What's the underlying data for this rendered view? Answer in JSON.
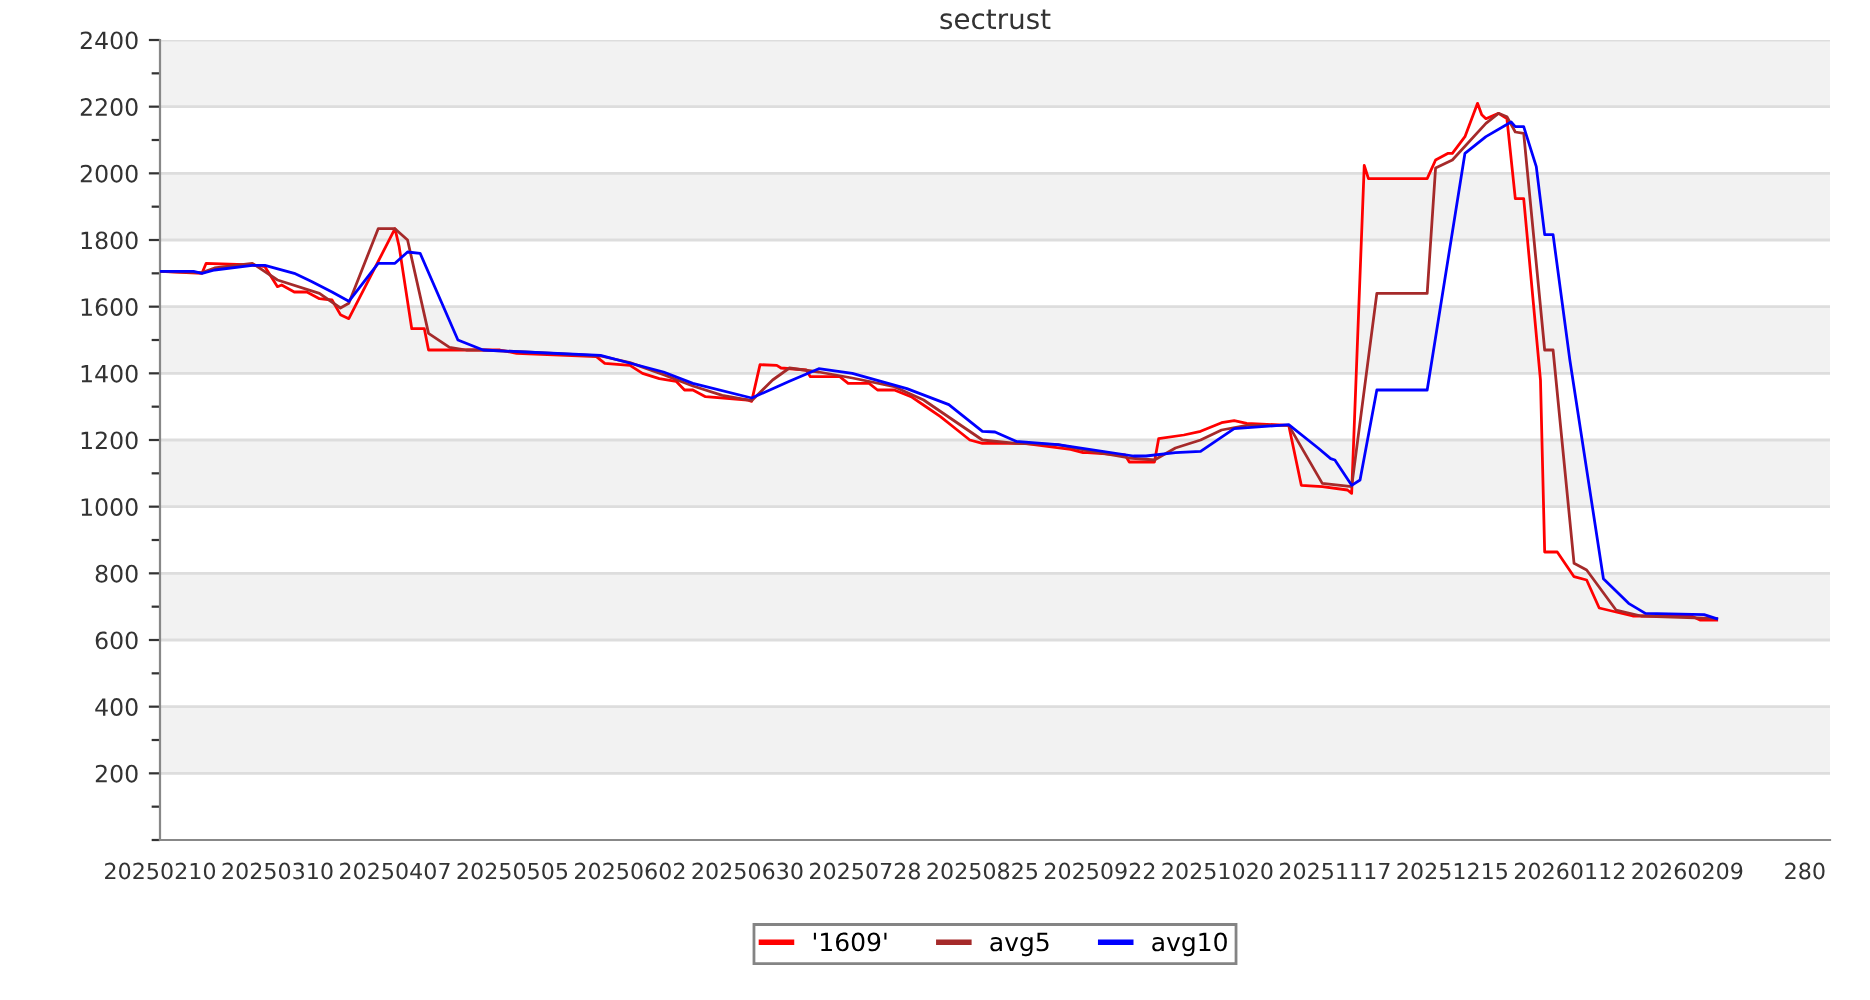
{
  "chart_data": {
    "type": "line",
    "title": "sectrust",
    "xlim": [
      "2025-02-10",
      "2026-03-15"
    ],
    "ylim": [
      0,
      2400
    ],
    "xticks": [
      {
        "value": "2025-02-10",
        "label": "20250210"
      },
      {
        "value": "2025-03-10",
        "label": "20250310"
      },
      {
        "value": "2025-04-07",
        "label": "20250407"
      },
      {
        "value": "2025-05-05",
        "label": "20250505"
      },
      {
        "value": "2025-06-02",
        "label": "20250602"
      },
      {
        "value": "2025-06-30",
        "label": "20250630"
      },
      {
        "value": "2025-07-28",
        "label": "20250728"
      },
      {
        "value": "2025-08-25",
        "label": "20250825"
      },
      {
        "value": "2025-09-22",
        "label": "20250922"
      },
      {
        "value": "2025-10-20",
        "label": "20251020"
      },
      {
        "value": "2025-11-17",
        "label": "20251117"
      },
      {
        "value": "2025-12-15",
        "label": "20251215"
      },
      {
        "value": "2026-01-12",
        "label": "20260112"
      },
      {
        "value": "2026-02-09",
        "label": "20260209"
      },
      {
        "value": "2026-03-09",
        "label": "280"
      }
    ],
    "yticks": [
      {
        "value": 0,
        "label": null
      },
      {
        "value": 100,
        "label": null
      },
      200,
      {
        "value": 300,
        "label": null
      },
      400,
      {
        "value": 500,
        "label": null
      },
      600,
      {
        "value": 700,
        "label": null
      },
      800,
      {
        "value": 900,
        "label": null
      },
      1000,
      {
        "value": 1100,
        "label": null
      },
      1200,
      {
        "value": 1300,
        "label": null
      },
      1400,
      {
        "value": 1500,
        "label": null
      },
      1600,
      {
        "value": 1700,
        "label": null
      },
      1800,
      {
        "value": 1900,
        "label": null
      },
      2000,
      {
        "value": 2100,
        "label": null
      },
      2200,
      {
        "value": 2300,
        "label": null
      },
      2400
    ],
    "grid": "y",
    "legend": "bottom",
    "marker": "none",
    "line_style": "solid",
    "series": [
      {
        "name": "'1609'",
        "color": "#ff0000",
        "x": [
          "2025-02-10",
          "2025-02-20",
          "2025-02-21",
          "2025-03-04",
          "2025-03-07",
          "2025-03-10",
          "2025-03-11",
          "2025-03-14",
          "2025-03-17",
          "2025-03-20",
          "2025-03-23",
          "2025-03-25",
          "2025-03-27",
          "2025-04-07",
          "2025-04-08",
          "2025-04-11",
          "2025-04-14",
          "2025-04-15",
          "2025-05-02",
          "2025-05-06",
          "2025-05-25",
          "2025-05-27",
          "2025-06-02",
          "2025-06-05",
          "2025-06-09",
          "2025-06-13",
          "2025-06-15",
          "2025-06-17",
          "2025-06-20",
          "2025-06-30",
          "2025-07-01",
          "2025-07-03",
          "2025-07-07",
          "2025-07-08",
          "2025-07-14",
          "2025-07-15",
          "2025-07-22",
          "2025-07-24",
          "2025-07-29",
          "2025-07-31",
          "2025-08-04",
          "2025-08-08",
          "2025-08-12",
          "2025-08-15",
          "2025-08-19",
          "2025-08-22",
          "2025-08-25",
          "2025-09-04",
          "2025-09-15",
          "2025-09-18",
          "2025-09-19",
          "2025-09-28",
          "2025-09-29",
          "2025-10-05",
          "2025-10-06",
          "2025-10-12",
          "2025-10-16",
          "2025-10-21",
          "2025-10-24",
          "2025-10-27",
          "2025-11-06",
          "2025-11-09",
          "2025-11-14",
          "2025-11-20",
          "2025-11-21",
          "2025-11-24",
          "2025-11-25",
          "2025-12-09",
          "2025-12-11",
          "2025-12-14",
          "2025-12-15",
          "2025-12-18",
          "2025-12-21",
          "2025-12-22",
          "2025-12-23",
          "2025-12-26",
          "2025-12-28",
          "2025-12-30",
          "2026-01-01",
          "2026-01-05",
          "2026-01-06",
          "2026-01-09",
          "2026-01-13",
          "2026-01-16",
          "2026-01-19",
          "2026-01-23",
          "2026-01-27",
          "2026-02-10",
          "2026-02-12",
          "2026-02-16"
        ],
        "values": [
          1706,
          1700,
          1730,
          1725,
          1720,
          1660,
          1665,
          1644,
          1644,
          1624,
          1620,
          1576,
          1564,
          1834,
          1780,
          1534,
          1534,
          1470,
          1470,
          1460,
          1450,
          1430,
          1424,
          1400,
          1384,
          1376,
          1350,
          1350,
          1330,
          1320,
          1316,
          1426,
          1424,
          1416,
          1410,
          1390,
          1390,
          1370,
          1370,
          1350,
          1350,
          1330,
          1296,
          1270,
          1230,
          1200,
          1190,
          1190,
          1172,
          1162,
          1162,
          1155,
          1134,
          1134,
          1204,
          1215,
          1226,
          1252,
          1258,
          1250,
          1244,
          1064,
          1060,
          1050,
          1040,
          2024,
          1984,
          1984,
          2040,
          2060,
          2060,
          2110,
          2210,
          2176,
          2164,
          2180,
          2164,
          1924,
          1924,
          1380,
          864,
          864,
          790,
          780,
          696,
          684,
          672,
          672,
          660,
          660
        ]
      },
      {
        "name": "avg5",
        "color": "#a52a2a",
        "x": [
          "2025-02-10",
          "2025-02-20",
          "2025-02-23",
          "2025-03-04",
          "2025-03-10",
          "2025-03-20",
          "2025-03-25",
          "2025-03-27",
          "2025-04-03",
          "2025-04-07",
          "2025-04-10",
          "2025-04-15",
          "2025-04-20",
          "2025-04-24",
          "2025-04-28",
          "2025-05-08",
          "2025-05-26",
          "2025-06-02",
          "2025-06-10",
          "2025-06-17",
          "2025-06-24",
          "2025-07-01",
          "2025-07-06",
          "2025-07-10",
          "2025-07-17",
          "2025-07-25",
          "2025-08-04",
          "2025-08-11",
          "2025-08-18",
          "2025-08-25",
          "2025-09-02",
          "2025-09-12",
          "2025-09-19",
          "2025-09-29",
          "2025-10-05",
          "2025-10-10",
          "2025-10-16",
          "2025-10-21",
          "2025-10-27",
          "2025-11-06",
          "2025-11-14",
          "2025-11-21",
          "2025-11-27",
          "2025-12-09",
          "2025-12-11",
          "2025-12-15",
          "2025-12-23",
          "2025-12-26",
          "2025-12-28",
          "2025-12-30",
          "2026-01-01",
          "2026-01-06",
          "2026-01-08",
          "2026-01-13",
          "2026-01-16",
          "2026-01-23",
          "2026-01-29",
          "2026-02-16"
        ],
        "values": [
          1706,
          1702,
          1716,
          1730,
          1680,
          1640,
          1596,
          1610,
          1834,
          1834,
          1800,
          1520,
          1478,
          1470,
          1470,
          1464,
          1452,
          1432,
          1396,
          1362,
          1334,
          1318,
          1380,
          1416,
          1404,
          1386,
          1360,
          1320,
          1260,
          1200,
          1190,
          1186,
          1168,
          1146,
          1140,
          1176,
          1200,
          1230,
          1244,
          1244,
          1070,
          1060,
          1640,
          1640,
          2016,
          2040,
          2150,
          2180,
          2170,
          2124,
          2120,
          1470,
          1470,
          830,
          810,
          690,
          672,
          664
        ]
      },
      {
        "name": "avg10",
        "color": "#0000ff",
        "x": [
          "2025-02-10",
          "2025-02-18",
          "2025-02-20",
          "2025-02-23",
          "2025-03-04",
          "2025-03-07",
          "2025-03-14",
          "2025-03-18",
          "2025-03-23",
          "2025-03-27",
          "2025-04-03",
          "2025-04-07",
          "2025-04-10",
          "2025-04-13",
          "2025-04-22",
          "2025-04-28",
          "2025-05-08",
          "2025-05-26",
          "2025-06-01",
          "2025-06-10",
          "2025-06-17",
          "2025-07-01",
          "2025-07-10",
          "2025-07-17",
          "2025-07-25",
          "2025-08-07",
          "2025-08-17",
          "2025-08-25",
          "2025-08-28",
          "2025-09-02",
          "2025-09-12",
          "2025-09-30",
          "2025-10-03",
          "2025-10-10",
          "2025-10-16",
          "2025-10-24",
          "2025-11-06",
          "2025-11-13",
          "2025-11-16",
          "2025-11-17",
          "2025-11-21",
          "2025-11-23",
          "2025-11-27",
          "2025-12-09",
          "2025-12-18",
          "2025-12-23",
          "2025-12-29",
          "2025-12-30",
          "2026-01-01",
          "2026-01-04",
          "2026-01-06",
          "2026-01-08",
          "2026-01-12",
          "2026-01-20",
          "2026-01-26",
          "2026-01-30",
          "2026-02-13",
          "2026-02-16"
        ],
        "values": [
          1706,
          1706,
          1700,
          1710,
          1724,
          1724,
          1700,
          1676,
          1644,
          1616,
          1730,
          1730,
          1764,
          1760,
          1500,
          1470,
          1464,
          1454,
          1434,
          1404,
          1370,
          1326,
          1376,
          1414,
          1400,
          1354,
          1306,
          1226,
          1224,
          1196,
          1186,
          1152,
          1152,
          1162,
          1166,
          1234,
          1246,
          1176,
          1144,
          1140,
          1064,
          1080,
          1350,
          1350,
          2060,
          2110,
          2154,
          2140,
          2140,
          2020,
          1816,
          1816,
          1440,
          784,
          710,
          680,
          676,
          664
        ]
      }
    ]
  }
}
